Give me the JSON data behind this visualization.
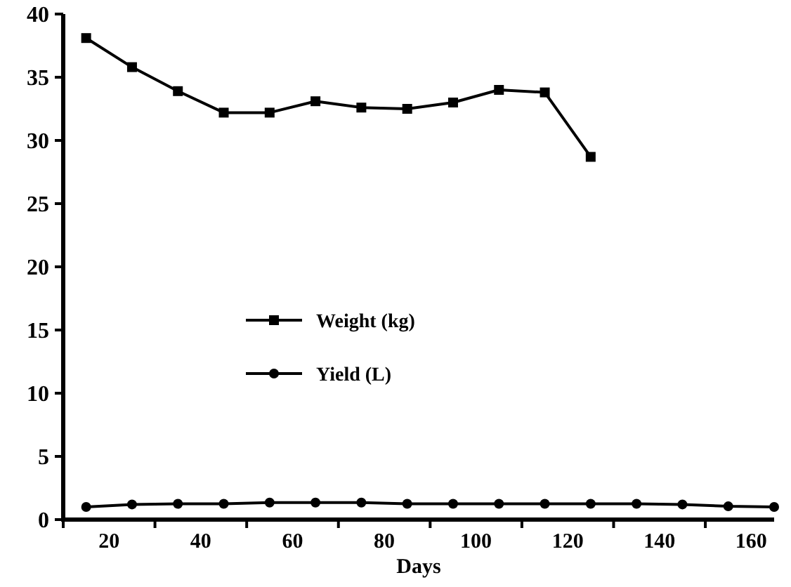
{
  "chart_data": {
    "type": "line",
    "xlabel": "Days",
    "xlim": [
      10,
      165
    ],
    "xticks": [
      {
        "value": 10,
        "label": null
      },
      20,
      {
        "value": 30,
        "label": null
      },
      40,
      {
        "value": 50,
        "label": null
      },
      60,
      {
        "value": 70,
        "label": null
      },
      80,
      {
        "value": 90,
        "label": null
      },
      100,
      {
        "value": 110,
        "label": null
      },
      120,
      {
        "value": 130,
        "label": null
      },
      140,
      {
        "value": 150,
        "label": null
      },
      160
    ],
    "ylim": [
      0,
      40
    ],
    "yticks": [
      0,
      5,
      10,
      15,
      20,
      25,
      30,
      35,
      40
    ],
    "grid": false,
    "legend": "center left",
    "line_style": "solid",
    "series": [
      {
        "name": "Weight (kg)",
        "color": "#000000",
        "marker": "square",
        "x": [
          15,
          25,
          35,
          45,
          55,
          65,
          75,
          85,
          95,
          105,
          115,
          125
        ],
        "values": [
          38.1,
          35.8,
          33.9,
          32.2,
          32.2,
          33.1,
          32.6,
          32.5,
          33.0,
          34.0,
          33.8,
          28.7
        ]
      },
      {
        "name": "Yield (L)",
        "color": "#000000",
        "marker": "circle",
        "x": [
          15,
          25,
          35,
          45,
          55,
          65,
          75,
          85,
          95,
          105,
          115,
          125,
          135,
          145,
          155,
          165
        ],
        "values": [
          1.0,
          1.2,
          1.25,
          1.25,
          1.35,
          1.35,
          1.35,
          1.25,
          1.25,
          1.25,
          1.25,
          1.25,
          1.25,
          1.2,
          1.05,
          1.0
        ]
      }
    ]
  }
}
